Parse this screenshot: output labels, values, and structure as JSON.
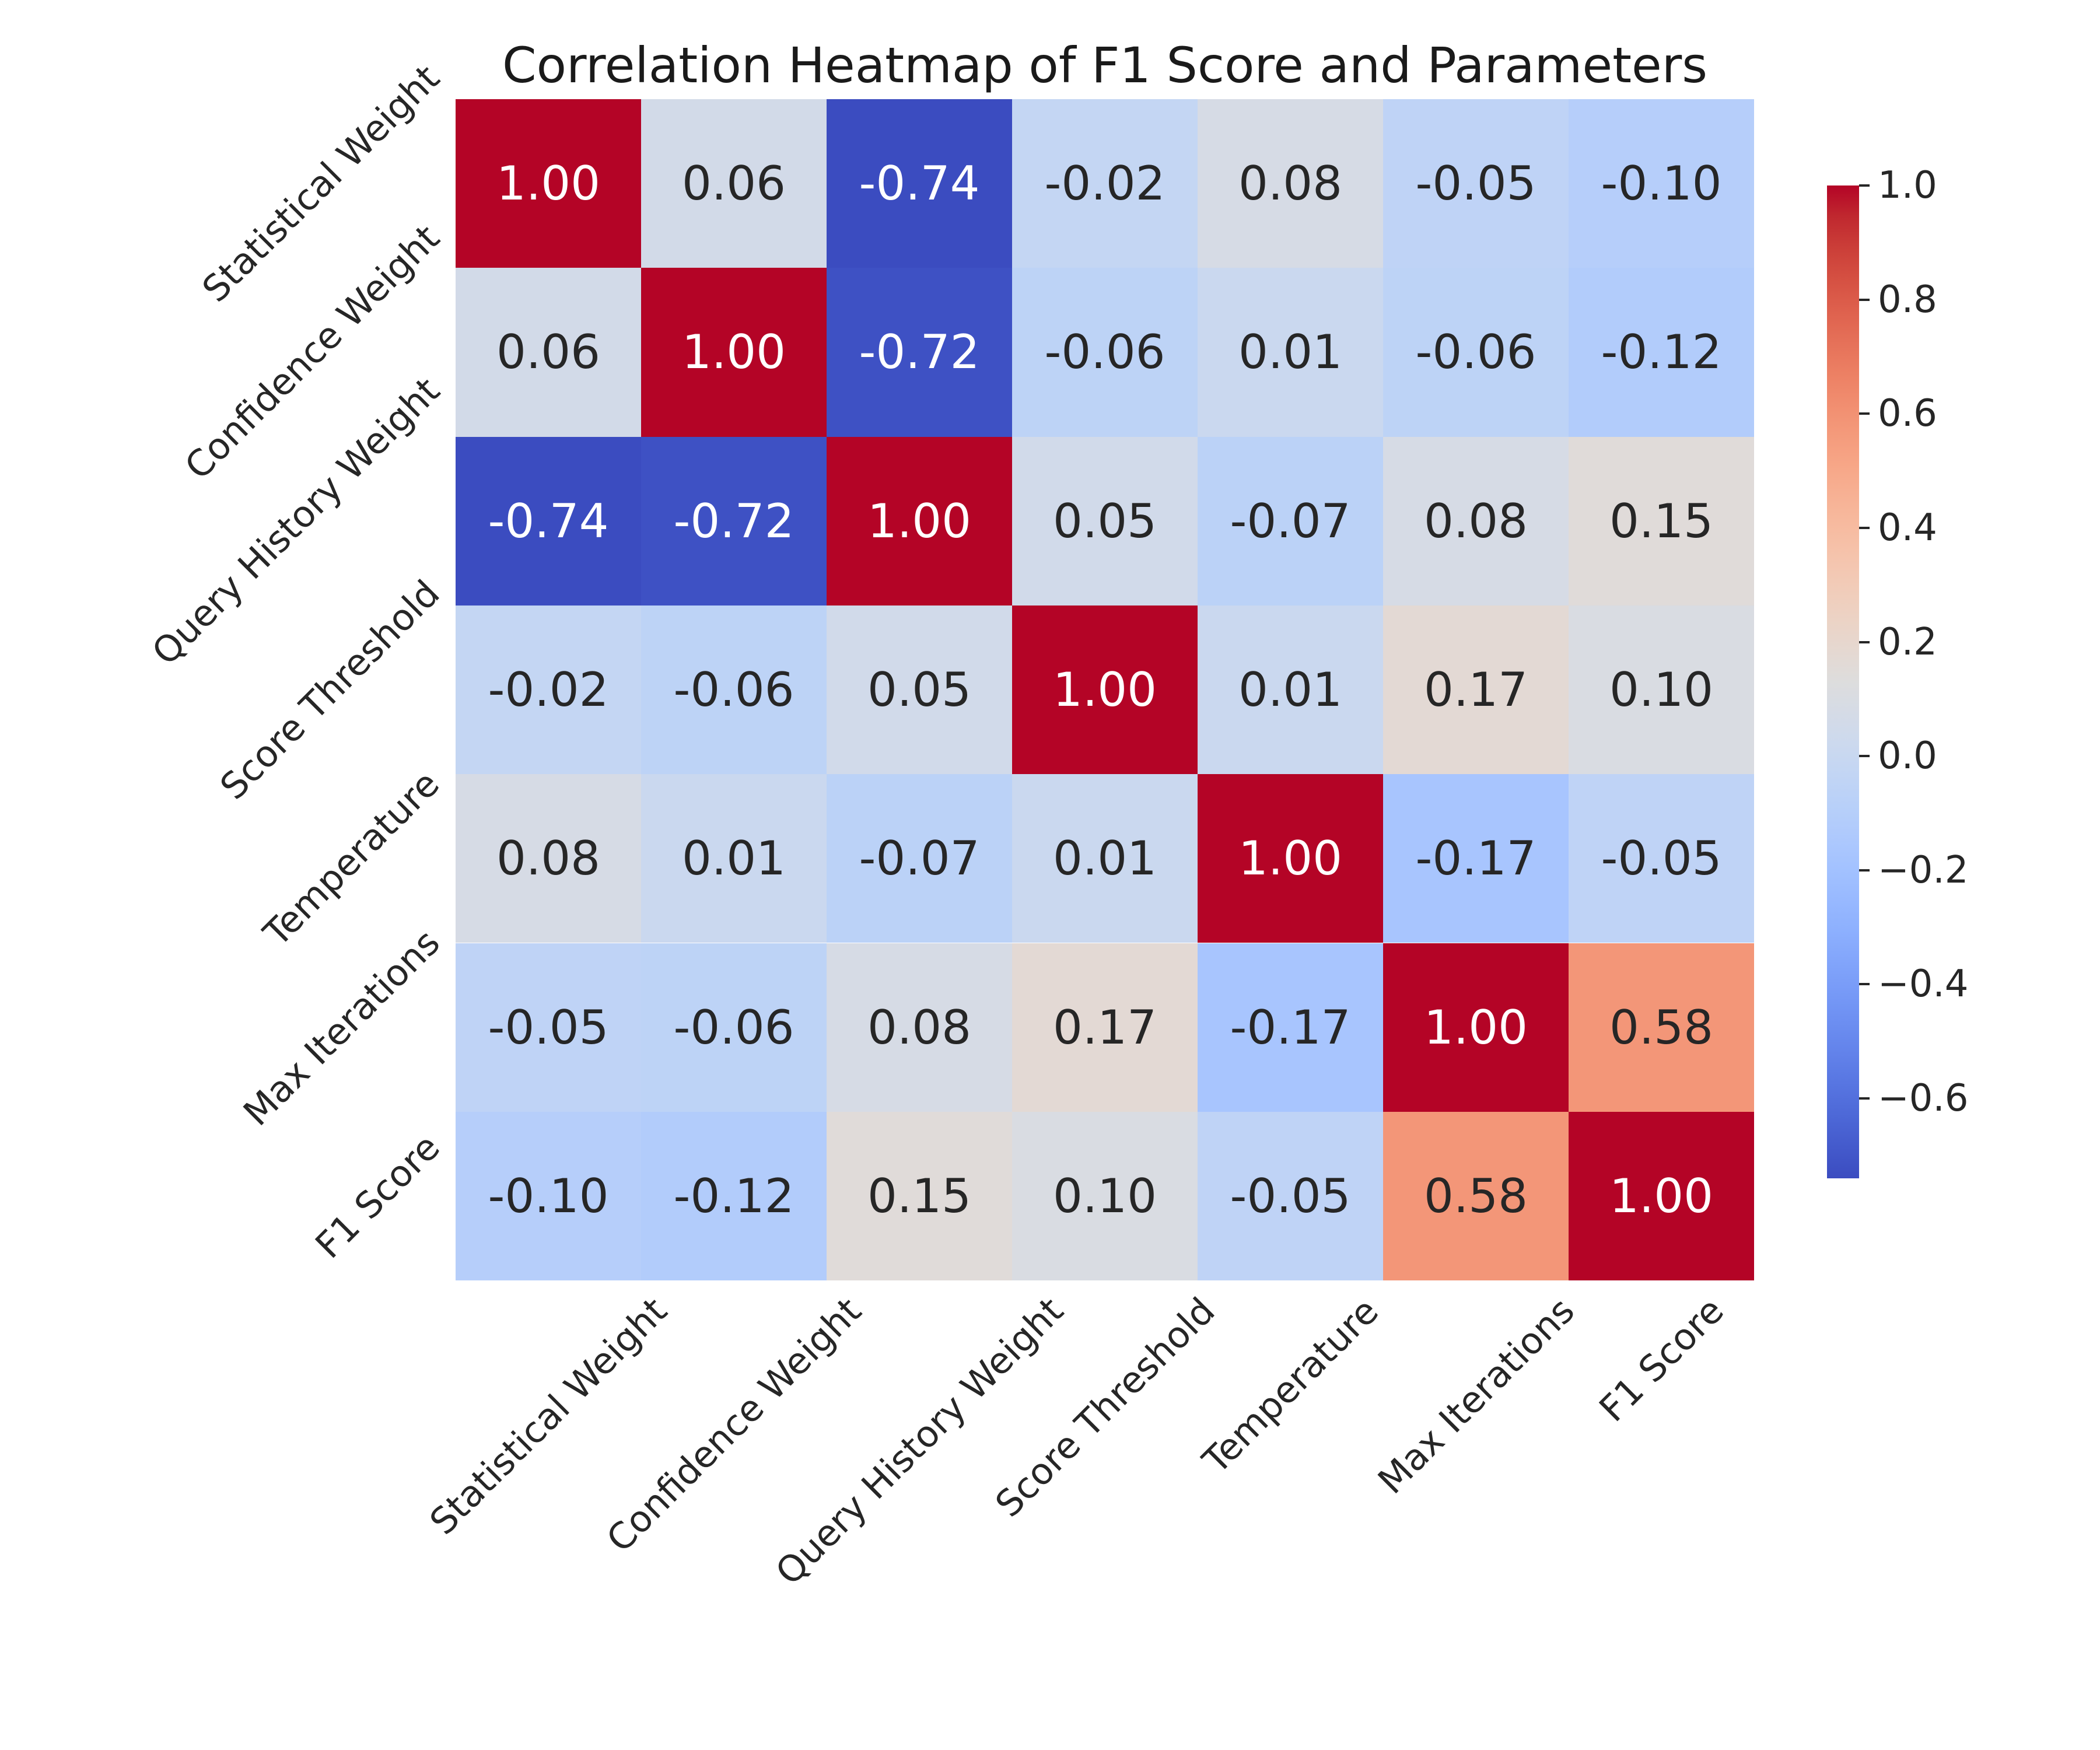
{
  "chart_data": {
    "type": "heatmap",
    "title": "Correlation Heatmap of F1 Score and Parameters",
    "categories": [
      "Statistical Weight",
      "Confidence Weight",
      "Query History Weight",
      "Score Threshold",
      "Temperature",
      "Max Iterations",
      "F1 Score"
    ],
    "matrix": [
      [
        1.0,
        0.06,
        -0.74,
        -0.02,
        0.08,
        -0.05,
        -0.1
      ],
      [
        0.06,
        1.0,
        -0.72,
        -0.06,
        0.01,
        -0.06,
        -0.12
      ],
      [
        -0.74,
        -0.72,
        1.0,
        0.05,
        -0.07,
        0.08,
        0.15
      ],
      [
        -0.02,
        -0.06,
        0.05,
        1.0,
        0.01,
        0.17,
        0.1
      ],
      [
        0.08,
        0.01,
        -0.07,
        0.01,
        1.0,
        -0.17,
        -0.05
      ],
      [
        -0.05,
        -0.06,
        0.08,
        0.17,
        -0.17,
        1.0,
        0.58
      ],
      [
        -0.1,
        -0.12,
        0.15,
        0.1,
        -0.05,
        0.58,
        1.0
      ]
    ],
    "vmin": -0.74,
    "vmax": 1.0,
    "colormap": "coolwarm",
    "color_min": "#3b4cc0",
    "color_mid": "#dddddd",
    "color_max": "#b40426",
    "cell_text_dark": "#262626",
    "cell_text_light": "#ffffff",
    "value_decimals": 2,
    "colorbar_ticks": [
      {
        "value": 1.0,
        "label": "1.0"
      },
      {
        "value": 0.8,
        "label": "0.8"
      },
      {
        "value": 0.6,
        "label": "0.6"
      },
      {
        "value": 0.4,
        "label": "0.4"
      },
      {
        "value": 0.2,
        "label": "0.2"
      },
      {
        "value": 0.0,
        "label": "0.0"
      },
      {
        "value": -0.2,
        "label": "−0.2"
      },
      {
        "value": -0.4,
        "label": "−0.4"
      },
      {
        "value": -0.6,
        "label": "−0.6"
      }
    ],
    "legend_position": "right",
    "grid": false
  }
}
